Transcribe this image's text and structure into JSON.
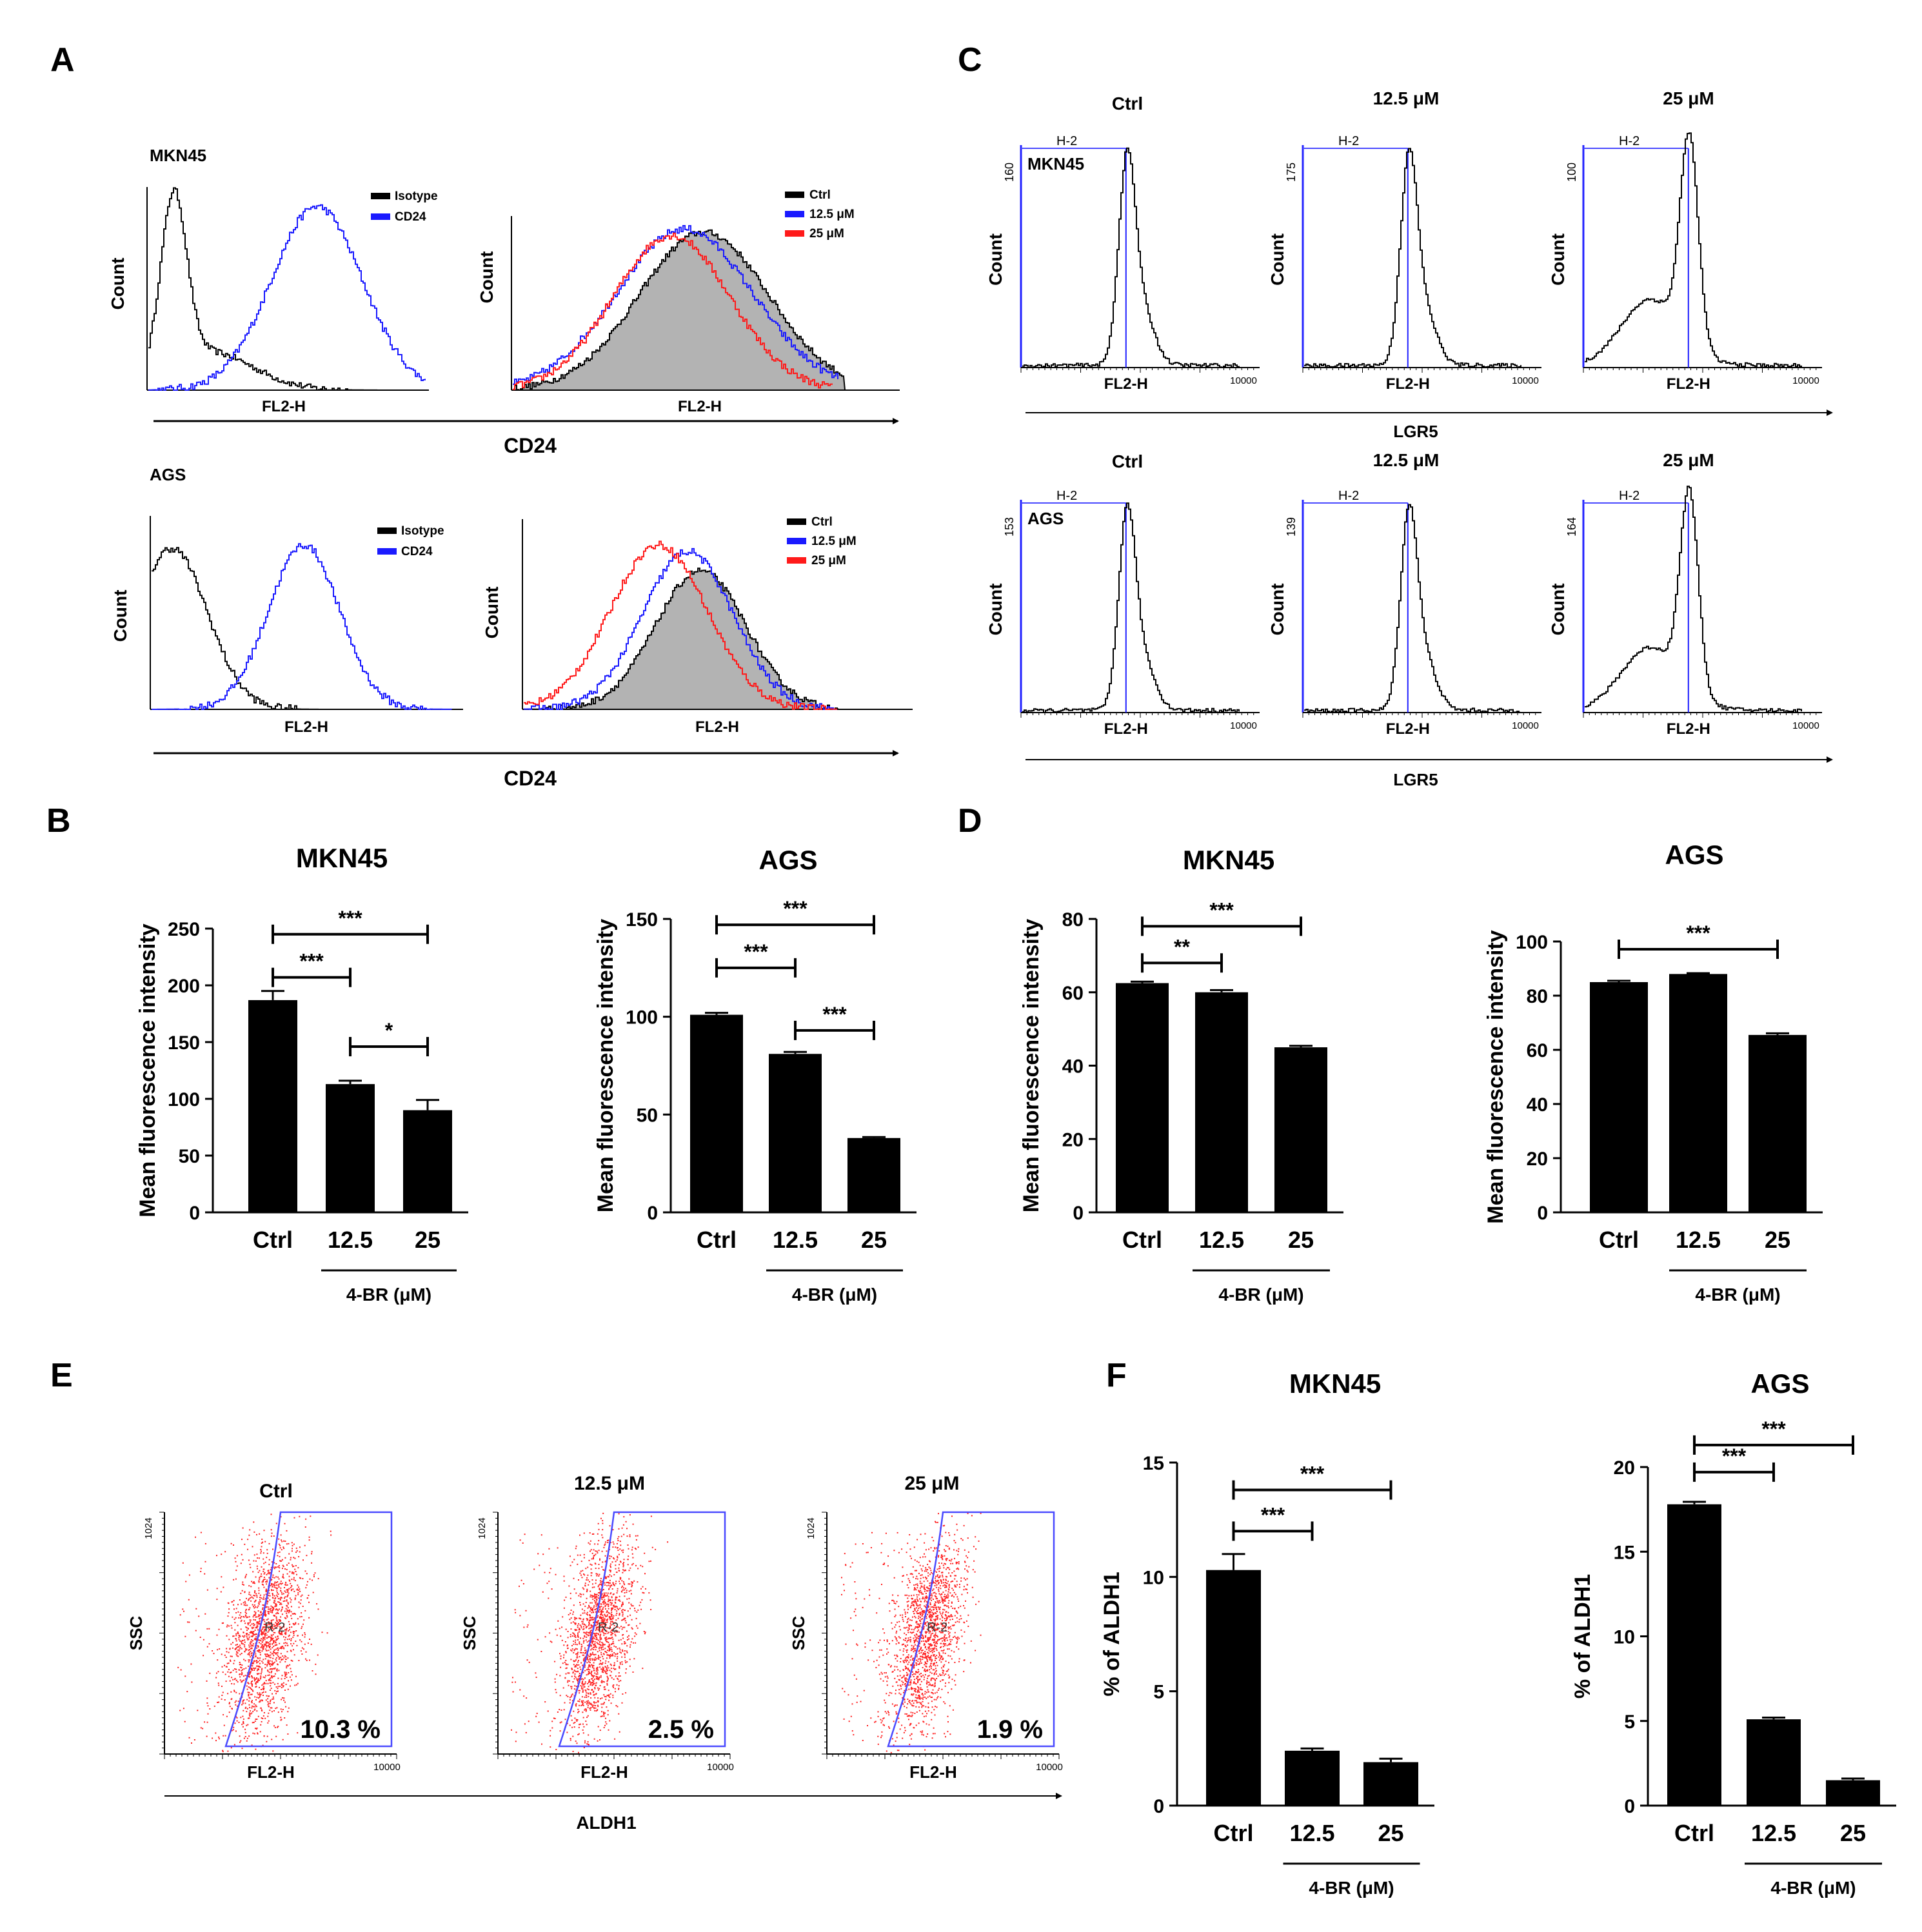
{
  "colors": {
    "black": "#000000",
    "blue": "#1a1aff",
    "red": "#ff1a1a",
    "gray_fill": "#b3b3b3",
    "gate_blue": "#4a4aff",
    "scatter_red": "#ff2020"
  },
  "panel_labels": [
    "A",
    "B",
    "C",
    "D",
    "E",
    "F"
  ],
  "panelA": {
    "mkn45_label": "MKN45",
    "ags_label": "AGS",
    "count_label": "Count",
    "fl2h_label": "FL2-H",
    "axis_label": "CD24",
    "legend_iso": [
      "Isotype",
      "CD24"
    ],
    "legend_treat": [
      "Ctrl",
      "12.5 μM",
      "25  μM"
    ]
  },
  "panelC": {
    "titles": [
      "Ctrl",
      "12.5 μM",
      "25 μM"
    ],
    "gate_label": "H-2",
    "count_label": "Count",
    "fl2h_label": "FL2-H",
    "xmax_label": "10000",
    "axis_label": "LGR5",
    "mkn45_label": "MKN45",
    "ags_label": "AGS",
    "mkn45_ymax": [
      "160",
      "175",
      "100"
    ],
    "ags_ymax": [
      "153",
      "139",
      "164"
    ]
  },
  "panelE": {
    "titles": [
      "Ctrl",
      "12.5 μM",
      "25 μM"
    ],
    "percents": [
      "10.3 %",
      "2.5 %",
      "1.9 %"
    ],
    "gate_label": "R-2",
    "ssc_label": "SSC",
    "fl2h_label": "FL2-H",
    "ymax_label": "1024",
    "xmax_label": "10000",
    "axis_label": "ALDH1"
  },
  "chart_data": [
    {
      "id": "B-MKN45",
      "type": "bar",
      "title": "MKN45",
      "ylabel": "Mean fluorescence intensity",
      "xlabel": "4-BR (μM)",
      "categories": [
        "Ctrl",
        "12.5",
        "25"
      ],
      "values": [
        187,
        113,
        90
      ],
      "errors": [
        8,
        3,
        9
      ],
      "ylim": [
        0,
        250
      ],
      "yticks": [
        0,
        50,
        100,
        150,
        200,
        250
      ],
      "significance": [
        {
          "from": 0,
          "to": 2,
          "label": "***"
        },
        {
          "from": 0,
          "to": 1,
          "label": "***"
        },
        {
          "from": 1,
          "to": 2,
          "label": "*"
        }
      ]
    },
    {
      "id": "B-AGS",
      "type": "bar",
      "title": "AGS",
      "ylabel": "Mean fluorescence intensity",
      "xlabel": "4-BR (μM)",
      "categories": [
        "Ctrl",
        "12.5",
        "25"
      ],
      "values": [
        101,
        81,
        38
      ],
      "errors": [
        1,
        1,
        0.5
      ],
      "ylim": [
        0,
        150
      ],
      "yticks": [
        0,
        50,
        100,
        150
      ],
      "significance": [
        {
          "from": 0,
          "to": 2,
          "label": "***"
        },
        {
          "from": 0,
          "to": 1,
          "label": "***"
        },
        {
          "from": 1,
          "to": 2,
          "label": "***"
        }
      ]
    },
    {
      "id": "D-MKN45",
      "type": "bar",
      "title": "MKN45",
      "ylabel": "Mean fluorescence intensity",
      "xlabel": "4-BR (μM)",
      "categories": [
        "Ctrl",
        "12.5",
        "25"
      ],
      "values": [
        62.5,
        60,
        45
      ],
      "errors": [
        0.4,
        0.6,
        0.4
      ],
      "ylim": [
        0,
        80
      ],
      "yticks": [
        0,
        20,
        40,
        60,
        80
      ],
      "significance": [
        {
          "from": 0,
          "to": 2,
          "label": "***"
        },
        {
          "from": 0,
          "to": 1,
          "label": "**"
        }
      ]
    },
    {
      "id": "D-AGS",
      "type": "bar",
      "title": "AGS",
      "ylabel": "Mean fluorescence intensity",
      "xlabel": "4-BR (μM)",
      "categories": [
        "Ctrl",
        "12.5",
        "25"
      ],
      "values": [
        85,
        88,
        65.5
      ],
      "errors": [
        0.5,
        0.3,
        0.6
      ],
      "ylim": [
        0,
        100
      ],
      "yticks": [
        0,
        20,
        40,
        60,
        80,
        100
      ],
      "significance": [
        {
          "from": 0,
          "to": 2,
          "label": "***"
        }
      ]
    },
    {
      "id": "F-MKN45",
      "type": "bar",
      "title": "MKN45",
      "ylabel": "% of ALDH1",
      "xlabel": "4-BR (μM)",
      "categories": [
        "Ctrl",
        "12.5",
        "25"
      ],
      "values": [
        10.3,
        2.4,
        1.9
      ],
      "errors": [
        0.7,
        0.1,
        0.15
      ],
      "ylim": [
        0,
        15
      ],
      "yticks": [
        0,
        5,
        10,
        15
      ],
      "significance": [
        {
          "from": 0,
          "to": 2,
          "label": "***"
        },
        {
          "from": 0,
          "to": 1,
          "label": "***"
        }
      ]
    },
    {
      "id": "F-AGS",
      "type": "bar",
      "title": "AGS",
      "ylabel": "% of ALDH1",
      "xlabel": "4-BR (μM)",
      "categories": [
        "Ctrl",
        "12.5",
        "25"
      ],
      "values": [
        17.8,
        5.1,
        1.5
      ],
      "errors": [
        0.15,
        0.1,
        0.1
      ],
      "ylim": [
        0,
        20
      ],
      "yticks": [
        0,
        5,
        10,
        15,
        20
      ],
      "significance": [
        {
          "from": 0,
          "to": 2,
          "label": "***"
        },
        {
          "from": 0,
          "to": 1,
          "label": "***"
        }
      ]
    }
  ]
}
